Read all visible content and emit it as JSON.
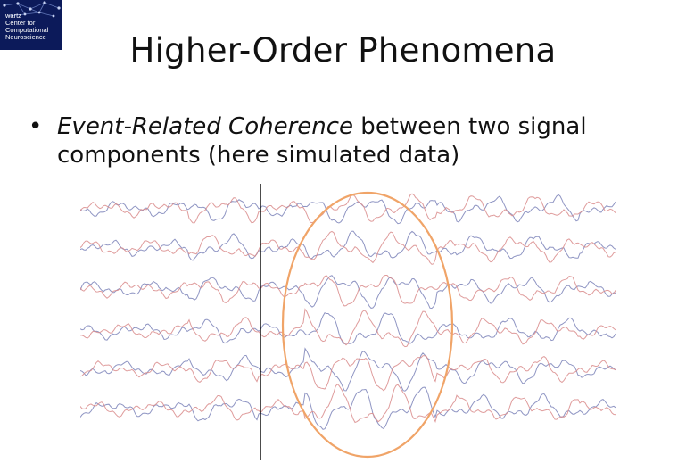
{
  "logo": {
    "lines": [
      "wartz",
      "Center for",
      "Computational",
      "Neuroscience"
    ],
    "bg_color": "#0c1a5a"
  },
  "slide": {
    "title": "Higher-Order Phenomena",
    "bullet_symbol": "•",
    "bullet_italic": "Event-Related Coherence",
    "bullet_rest": " between two signal components (here simulated data)"
  },
  "figure": {
    "trace_count": 6,
    "colors": {
      "signal_a": "#7b83b8",
      "signal_b": "#d98b8b",
      "ellipse": "#f0a468",
      "event_line": "#000000"
    }
  }
}
